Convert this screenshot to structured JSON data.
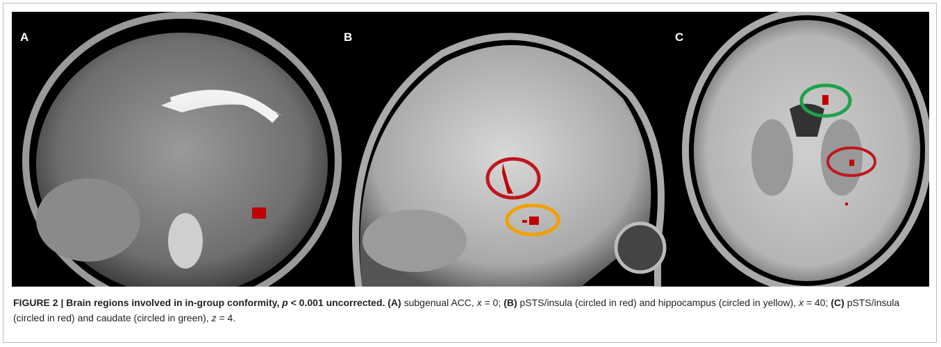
{
  "figure": {
    "panels": [
      {
        "label": "A"
      },
      {
        "label": "B"
      },
      {
        "label": "C"
      }
    ],
    "caption": {
      "runs": [
        "FIGURE 2 | Brain regions involved in in-group conformity, ",
        "p",
        " < 0.001 uncorrected. (A)",
        " subgenual ACC, ",
        "x",
        " = 0; ",
        "(B)",
        " pSTS/insula (circled in red) and hippocampus (circled in yellow), ",
        "x",
        " = 40; ",
        "(C)",
        " pSTS/insula (circled in red) and caudate (circled in green), ",
        "z",
        " = 4."
      ]
    }
  }
}
